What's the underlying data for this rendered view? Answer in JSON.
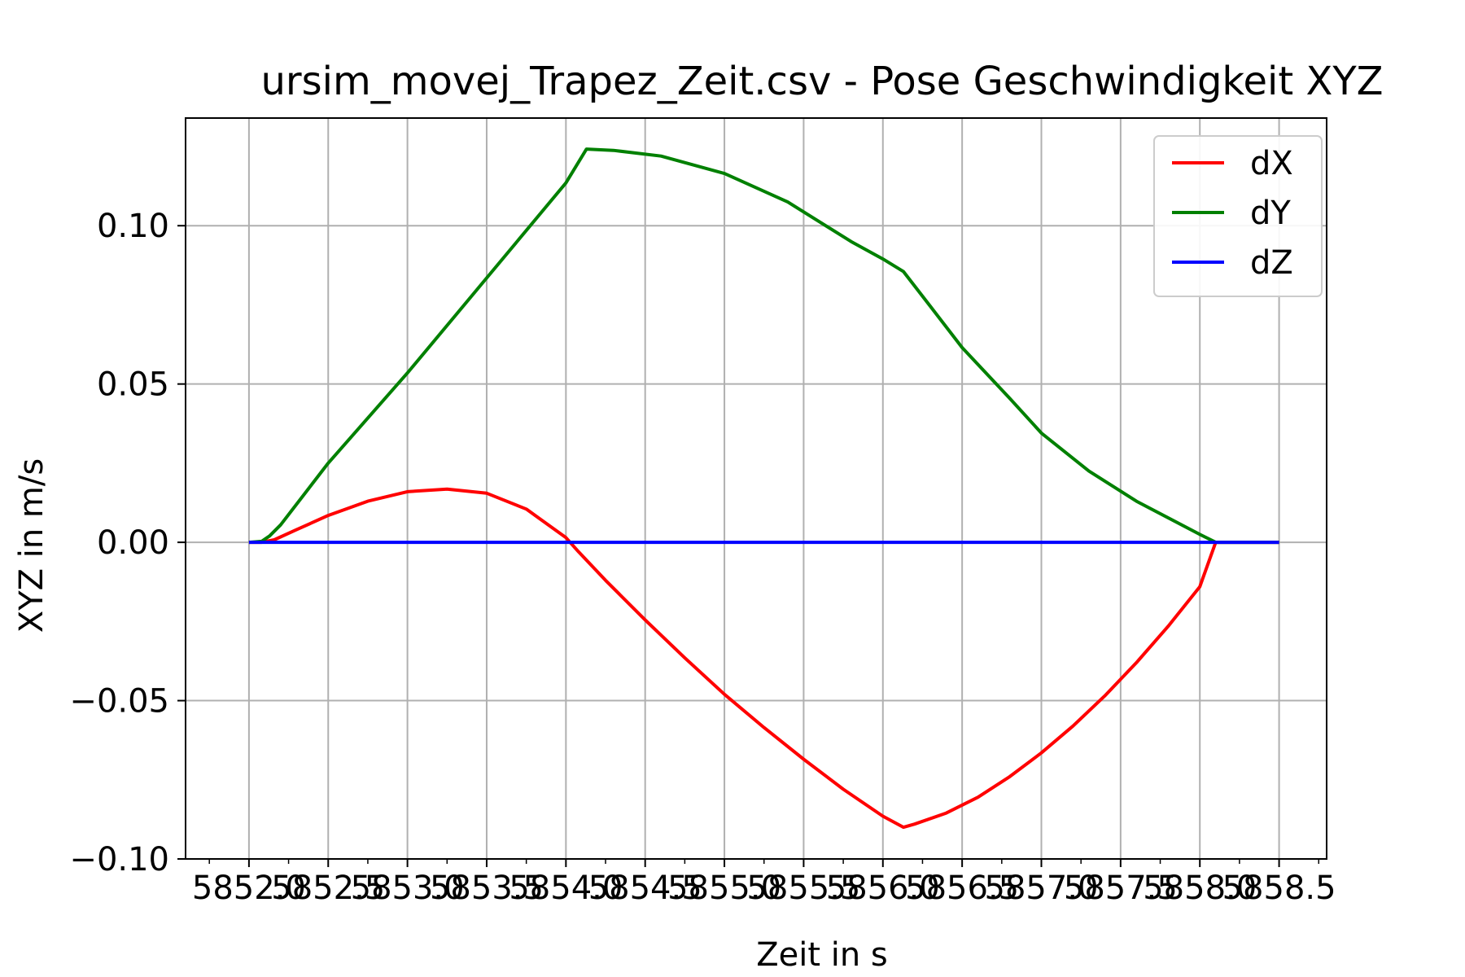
{
  "chart_data": {
    "type": "line",
    "title": "ursim_movej_Trapez_Zeit.csv - Pose Geschwindigkeit XYZ",
    "xlabel": "Zeit in s",
    "ylabel": "XYZ in m/s",
    "xlim": [
      5851.6,
      5858.8
    ],
    "ylim": [
      -0.1,
      0.134
    ],
    "grid": true,
    "legend_position": "top-right",
    "x_ticks": [
      5852.0,
      5852.5,
      5853.0,
      5853.5,
      5854.0,
      5854.5,
      5855.0,
      5855.5,
      5856.0,
      5856.5,
      5857.0,
      5857.5,
      5858.0,
      5858.5
    ],
    "x_tick_labels": [
      "5852.0",
      "5852.5",
      "5853.0",
      "5853.5",
      "5854.0",
      "5854.5",
      "5855.0",
      "5855.5",
      "5856.0",
      "5856.5",
      "5857.0",
      "5857.5",
      "5858.0",
      "5858.5"
    ],
    "x_minor_step": 0.25,
    "y_ticks": [
      -0.1,
      -0.05,
      0.0,
      0.05,
      0.1
    ],
    "y_tick_labels": [
      "−0.10",
      "−0.05",
      "0.00",
      "0.05",
      "0.10"
    ],
    "series": [
      {
        "name": "dX",
        "color": "#ff0000",
        "x": [
          5852.0,
          5852.08,
          5852.16,
          5852.3,
          5852.5,
          5852.75,
          5853.0,
          5853.25,
          5853.5,
          5853.75,
          5854.0,
          5854.08,
          5854.25,
          5854.5,
          5854.75,
          5855.0,
          5855.25,
          5855.5,
          5855.75,
          5856.0,
          5856.13,
          5856.2,
          5856.4,
          5856.6,
          5856.8,
          5857.0,
          5857.2,
          5857.4,
          5857.6,
          5857.8,
          5858.0,
          5858.1,
          5858.3,
          5858.5
        ],
        "y": [
          0.0,
          0.0,
          0.0008,
          0.004,
          0.0085,
          0.013,
          0.016,
          0.0168,
          0.0155,
          0.0105,
          0.0015,
          -0.003,
          -0.012,
          -0.0245,
          -0.0365,
          -0.048,
          -0.0585,
          -0.0685,
          -0.078,
          -0.0865,
          -0.09,
          -0.089,
          -0.0855,
          -0.0805,
          -0.074,
          -0.0665,
          -0.058,
          -0.0485,
          -0.038,
          -0.0265,
          -0.014,
          0.0,
          0.0,
          0.0
        ]
      },
      {
        "name": "dY",
        "color": "#008000",
        "x": [
          5852.0,
          5852.08,
          5852.13,
          5852.2,
          5852.5,
          5853.0,
          5853.5,
          5854.0,
          5854.13,
          5854.3,
          5854.6,
          5855.0,
          5855.4,
          5855.8,
          5856.0,
          5856.13,
          5856.3,
          5856.5,
          5856.8,
          5857.0,
          5857.3,
          5857.6,
          5858.0,
          5858.1,
          5858.3,
          5858.5
        ],
        "y": [
          0.0,
          0.0003,
          0.002,
          0.0055,
          0.025,
          0.0535,
          0.0835,
          0.1135,
          0.1242,
          0.1238,
          0.122,
          0.1165,
          0.1075,
          0.095,
          0.0895,
          0.0855,
          0.0745,
          0.0615,
          0.0455,
          0.0345,
          0.0225,
          0.013,
          0.0025,
          0.0,
          0.0,
          0.0
        ]
      },
      {
        "name": "dZ",
        "color": "#0000ff",
        "x": [
          5852.0,
          5858.5
        ],
        "y": [
          0.0,
          0.0
        ]
      }
    ]
  }
}
